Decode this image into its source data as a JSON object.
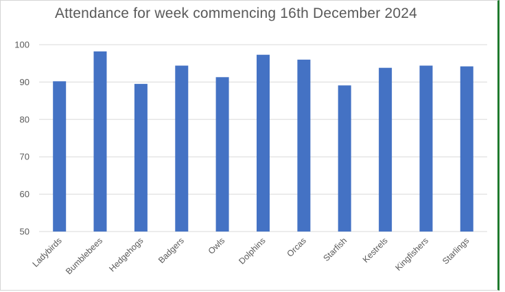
{
  "chart_data": {
    "type": "bar",
    "title": "Attendance for week commencing 16th December 2024",
    "xlabel": "",
    "ylabel": "",
    "ylim": [
      50,
      100
    ],
    "yticks": [
      50,
      60,
      70,
      80,
      90,
      100
    ],
    "grid": true,
    "categories": [
      "Ladybirds",
      "Bumblebees",
      "Hedgehogs",
      "Badgers",
      "Owls",
      "Dolphins",
      "Orcas",
      "Starfish",
      "Kestrels",
      "Kingfishers",
      "Starlings"
    ],
    "values": [
      90.2,
      98.2,
      89.5,
      94.4,
      91.3,
      97.3,
      96.0,
      89.1,
      93.8,
      94.4,
      94.2
    ],
    "colors": {
      "bar": "#4472C4",
      "grid": "#d9d9d9",
      "text": "#595959",
      "border": "#1f7a2e"
    }
  }
}
